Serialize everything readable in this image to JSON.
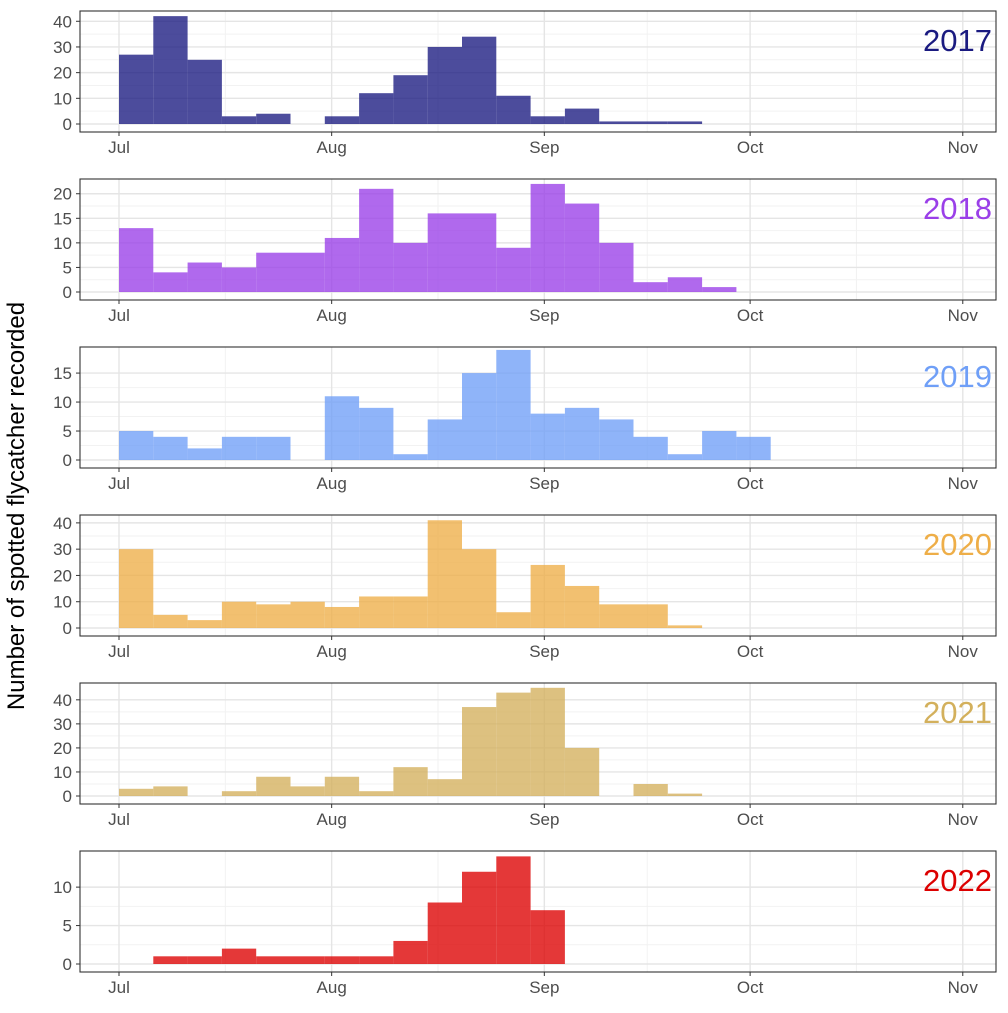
{
  "chart_data": {
    "type": "bar",
    "ylabel": "Number of spotted flycatcher recorded",
    "xlabel": "",
    "x_ticks": [
      "Jul",
      "Aug",
      "Sep",
      "Oct",
      "Nov"
    ],
    "bin_width_days": 5,
    "grid": true,
    "panels": [
      {
        "label": "2017",
        "color": "#1a1a80",
        "ylim": [
          0,
          44
        ],
        "yticks": [
          0,
          10,
          20,
          30,
          40
        ],
        "bins": [
          "Jul 1",
          "Jul 6",
          "Jul 11",
          "Jul 16",
          "Jul 21",
          "Jul 26",
          "Jul 31",
          "Aug 5",
          "Aug 10",
          "Aug 15",
          "Aug 20",
          "Aug 25",
          "Aug 30",
          "Sep 4",
          "Sep 9",
          "Sep 14",
          "Sep 19"
        ],
        "values": [
          27,
          42,
          25,
          3,
          4,
          0,
          3,
          12,
          19,
          30,
          34,
          11,
          3,
          6,
          1,
          1,
          1
        ]
      },
      {
        "label": "2018",
        "color": "#9a3fe8",
        "ylim": [
          0,
          23
        ],
        "yticks": [
          0,
          5,
          10,
          15,
          20
        ],
        "bins": [
          "Jul 1",
          "Jul 6",
          "Jul 11",
          "Jul 16",
          "Jul 21",
          "Jul 26",
          "Jul 31",
          "Aug 5",
          "Aug 10",
          "Aug 15",
          "Aug 20",
          "Aug 25",
          "Aug 30",
          "Sep 4",
          "Sep 9",
          "Sep 14",
          "Sep 19",
          "Sep 24"
        ],
        "values": [
          13,
          4,
          6,
          5,
          8,
          8,
          11,
          21,
          10,
          16,
          16,
          9,
          22,
          18,
          10,
          2,
          3,
          1
        ]
      },
      {
        "label": "2019",
        "color": "#6f9ff7",
        "ylim": [
          0,
          19.5
        ],
        "yticks": [
          0,
          5,
          10,
          15
        ],
        "bins": [
          "Jul 1",
          "Jul 6",
          "Jul 11",
          "Jul 16",
          "Jul 21",
          "Jul 26",
          "Jul 31",
          "Aug 5",
          "Aug 10",
          "Aug 15",
          "Aug 20",
          "Aug 25",
          "Aug 30",
          "Sep 4",
          "Sep 9",
          "Sep 14",
          "Sep 19",
          "Sep 24",
          "Sep 29"
        ],
        "values": [
          5,
          4,
          2,
          4,
          4,
          0,
          11,
          9,
          1,
          7,
          15,
          19,
          8,
          9,
          7,
          4,
          1,
          5,
          4
        ]
      },
      {
        "label": "2020",
        "color": "#eeae48",
        "ylim": [
          0,
          43
        ],
        "yticks": [
          0,
          10,
          20,
          30,
          40
        ],
        "bins": [
          "Jul 1",
          "Jul 6",
          "Jul 11",
          "Jul 16",
          "Jul 21",
          "Jul 26",
          "Jul 31",
          "Aug 5",
          "Aug 10",
          "Aug 15",
          "Aug 20",
          "Aug 25",
          "Aug 30",
          "Sep 4",
          "Sep 9",
          "Sep 14",
          "Sep 19"
        ],
        "values": [
          30,
          5,
          3,
          10,
          9,
          10,
          8,
          12,
          12,
          41,
          30,
          6,
          24,
          16,
          9,
          9,
          1
        ]
      },
      {
        "label": "2021",
        "color": "#d3b05c",
        "ylim": [
          0,
          47
        ],
        "yticks": [
          0,
          10,
          20,
          30,
          40
        ],
        "bins": [
          "Jul 1",
          "Jul 6",
          "Jul 11",
          "Jul 16",
          "Jul 21",
          "Jul 26",
          "Jul 31",
          "Aug 5",
          "Aug 10",
          "Aug 15",
          "Aug 20",
          "Aug 25",
          "Aug 30",
          "Sep 4",
          "Sep 9",
          "Sep 14",
          "Sep 19"
        ],
        "values": [
          3,
          4,
          0,
          2,
          8,
          4,
          8,
          2,
          12,
          7,
          37,
          43,
          45,
          20,
          0,
          5,
          1
        ]
      },
      {
        "label": "2022",
        "color": "#dc0000",
        "ylim": [
          0,
          14.7
        ],
        "yticks": [
          0,
          5,
          10
        ],
        "bins": [
          "Jul 1",
          "Jul 6",
          "Jul 11",
          "Jul 16",
          "Jul 21",
          "Jul 26",
          "Jul 31",
          "Aug 5",
          "Aug 10",
          "Aug 15",
          "Aug 20",
          "Aug 25",
          "Aug 30"
        ],
        "values": [
          0,
          1,
          1,
          2,
          1,
          1,
          1,
          1,
          3,
          8,
          12,
          14,
          7
        ]
      }
    ]
  }
}
